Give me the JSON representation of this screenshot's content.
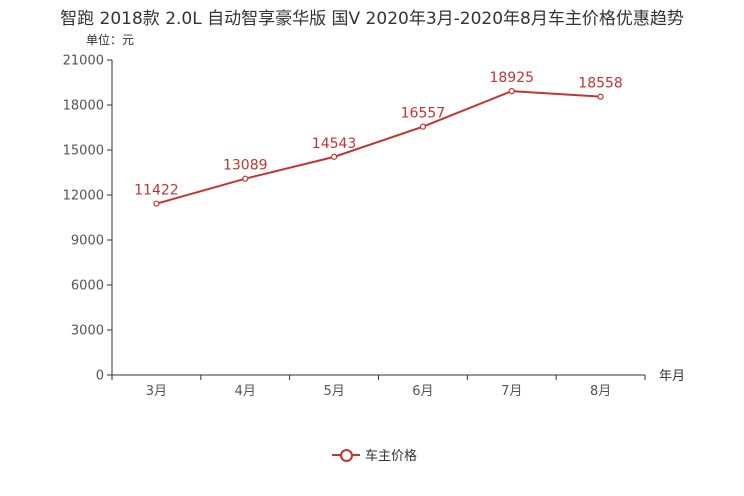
{
  "title": "智跑 2018款 2.0L 自动智享豪华版 国V 2020年3月-2020年8月车主价格优惠趋势",
  "unit_label": "单位：元",
  "chart_data": {
    "type": "line",
    "title": "智跑 2018款 2.0L 自动智享豪华版 国V 2020年3月-2020年8月车主价格优惠趋势",
    "xlabel": "年月",
    "ylabel": "单位：元",
    "categories": [
      "3月",
      "4月",
      "5月",
      "6月",
      "7月",
      "8月"
    ],
    "series": [
      {
        "name": "车主价格",
        "values": [
          11422,
          13089,
          14543,
          16557,
          18925,
          18558
        ]
      }
    ],
    "ylim": [
      0,
      21000
    ],
    "yticks": [
      0,
      3000,
      6000,
      9000,
      12000,
      15000,
      18000,
      21000
    ],
    "grid": false,
    "legend": "bottom-center",
    "color": "#c23531"
  },
  "legend": {
    "label": "车主价格"
  }
}
